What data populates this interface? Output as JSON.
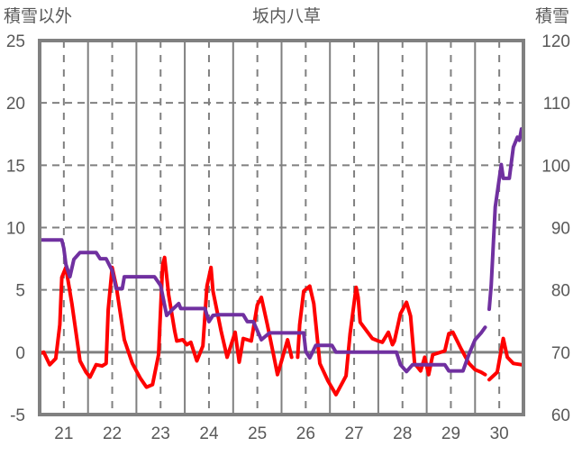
{
  "chart_data": {
    "type": "line",
    "title": "坂内八草",
    "ylabel_left": "積雪以外",
    "ylabel_right": "積雪",
    "ylim_left": [
      -5,
      25
    ],
    "ylim_right": [
      60,
      120
    ],
    "yticks_left": [
      "-5",
      "0",
      "5",
      "10",
      "15",
      "20",
      "25"
    ],
    "yticks_right": [
      "60",
      "70",
      "80",
      "90",
      "100",
      "110",
      "120"
    ],
    "xlim_hours": [
      0,
      240
    ],
    "xticks": [
      "21",
      "22",
      "23",
      "24",
      "25",
      "26",
      "27",
      "28",
      "29",
      "30"
    ],
    "grid": true,
    "series": [
      {
        "name": "積雪以外",
        "axis": "left",
        "color": "#ff0000",
        "points": [
          [
            0,
            -0.1
          ],
          [
            2,
            0
          ],
          [
            5,
            -1.0
          ],
          [
            8,
            -0.5
          ],
          [
            10,
            2.2
          ],
          [
            11,
            6.0
          ],
          [
            13,
            6.8
          ],
          [
            16,
            3.9
          ],
          [
            20,
            -0.7
          ],
          [
            23,
            -1.6
          ],
          [
            25,
            -2.0
          ],
          [
            28,
            -1.0
          ],
          [
            31,
            -1.1
          ],
          [
            33,
            -0.9
          ],
          [
            34,
            3.4
          ],
          [
            36,
            6.8
          ],
          [
            38,
            5.3
          ],
          [
            42,
            1.0
          ],
          [
            46,
            -0.9
          ],
          [
            50,
            -2.1
          ],
          [
            53,
            -2.8
          ],
          [
            56,
            -2.6
          ],
          [
            59,
            -0.2
          ],
          [
            61,
            7.0
          ],
          [
            62,
            7.6
          ],
          [
            64,
            4.6
          ],
          [
            67,
            1.7
          ],
          [
            68,
            0.9
          ],
          [
            71,
            1.0
          ],
          [
            73,
            0.6
          ],
          [
            75,
            0.8
          ],
          [
            78,
            -0.7
          ],
          [
            81,
            0.5
          ],
          [
            83,
            5.3
          ],
          [
            85,
            6.8
          ],
          [
            86,
            4.9
          ],
          [
            90,
            1.7
          ],
          [
            93,
            -0.4
          ],
          [
            97,
            1.6
          ],
          [
            99,
            -0.8
          ],
          [
            101,
            1.1
          ],
          [
            105,
            0.9
          ],
          [
            108,
            3.8
          ],
          [
            110,
            4.4
          ],
          [
            113,
            2.2
          ],
          [
            116,
            -0.2
          ],
          [
            118,
            -1.8
          ],
          [
            120,
            -0.7
          ],
          [
            123,
            1.0
          ],
          [
            125,
            -0.4
          ],
          null,
          [
            128,
            -0.4
          ],
          [
            129,
            2.2
          ],
          [
            131,
            4.9
          ],
          [
            134,
            5.3
          ],
          [
            136,
            3.9
          ],
          [
            139,
            -0.9
          ],
          [
            143,
            -2.3
          ],
          [
            147,
            -3.4
          ],
          [
            152,
            -1.9
          ],
          [
            154,
            1.5
          ],
          [
            157,
            5.2
          ],
          [
            158,
            4.4
          ],
          [
            159,
            2.4
          ],
          [
            165,
            1.1
          ],
          [
            168,
            0.9
          ],
          [
            170,
            0.8
          ],
          [
            173,
            1.6
          ],
          [
            175,
            0.6
          ],
          [
            176,
            0.9
          ],
          [
            179,
            3.1
          ],
          [
            182,
            4.0
          ],
          [
            184,
            2.9
          ],
          [
            186,
            -0.9
          ],
          [
            189,
            -1.5
          ],
          [
            191,
            -0.4
          ],
          [
            193,
            -1.8
          ],
          [
            195,
            -0.2
          ],
          [
            201,
            0.1
          ],
          [
            203,
            1.5
          ],
          [
            205,
            1.6
          ],
          [
            209,
            0.3
          ],
          [
            213,
            -0.9
          ],
          [
            216,
            -1.4
          ],
          [
            219,
            -1.6
          ],
          [
            221,
            -1.8
          ],
          null,
          [
            223,
            -2.2
          ],
          [
            227,
            -1.6
          ],
          [
            230,
            1.1
          ],
          [
            232,
            -0.4
          ],
          [
            235,
            -0.9
          ],
          [
            239,
            -1.0
          ]
        ]
      },
      {
        "name": "積雪",
        "axis": "right",
        "color": "#7030a0",
        "points": [
          [
            0,
            88
          ],
          [
            11,
            88
          ],
          [
            12,
            86.7
          ],
          [
            13,
            84.1
          ],
          [
            15,
            82.1
          ],
          [
            17,
            84.9
          ],
          [
            20,
            86
          ],
          [
            28,
            86
          ],
          [
            30,
            85
          ],
          [
            33,
            85
          ],
          [
            36,
            83.1
          ],
          [
            38,
            80.2
          ],
          [
            41,
            80.2
          ],
          [
            42,
            82.1
          ],
          [
            57,
            82.1
          ],
          [
            60,
            80.7
          ],
          [
            63,
            75.9
          ],
          [
            66,
            76.9
          ],
          [
            69,
            77.8
          ],
          [
            70,
            77
          ],
          [
            82,
            77
          ],
          [
            84,
            74.9
          ],
          [
            86,
            75.9
          ],
          [
            89,
            76
          ],
          [
            101,
            76
          ],
          [
            103,
            74.9
          ],
          [
            106,
            74.9
          ],
          [
            110,
            72
          ],
          [
            114,
            73.1
          ],
          [
            126,
            73.1
          ],
          [
            131,
            73.1
          ],
          [
            132,
            70.1
          ],
          [
            134,
            69.1
          ],
          [
            137,
            71.1
          ],
          [
            145,
            71.1
          ],
          [
            147,
            70
          ],
          [
            177,
            70
          ],
          [
            179,
            68
          ],
          [
            182,
            66.9
          ],
          [
            185,
            68
          ],
          [
            201,
            68
          ],
          [
            203,
            67
          ],
          [
            210,
            67
          ],
          [
            213,
            69.7
          ],
          [
            216,
            72
          ],
          [
            219,
            73.1
          ],
          [
            221,
            74
          ],
          null,
          [
            223,
            76.9
          ],
          [
            224,
            80.7
          ],
          [
            226,
            93.3
          ],
          [
            229,
            100.1
          ],
          [
            230,
            97.9
          ],
          [
            233,
            97.9
          ],
          [
            235,
            102.9
          ],
          [
            237,
            104.5
          ],
          [
            238,
            104
          ],
          [
            239,
            105.8
          ]
        ]
      }
    ]
  }
}
